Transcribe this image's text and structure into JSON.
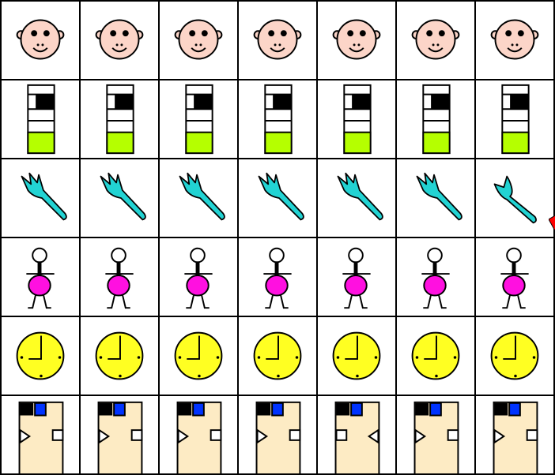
{
  "grid": [
    [
      "face",
      "face",
      "face",
      "face",
      "face",
      "face",
      "face"
    ],
    [
      "battery",
      "battery",
      "battery",
      "battery",
      "battery",
      "battery",
      "battery"
    ],
    [
      "fork",
      "fork",
      "fork",
      "fork",
      "fork",
      "fork",
      "fork-two-prong"
    ],
    [
      "person",
      "person",
      "person",
      "person",
      "person",
      "person",
      "person"
    ],
    [
      "clock",
      "clock",
      "clock",
      "clock",
      "clock",
      "clock",
      "clock"
    ],
    [
      "card",
      "card",
      "card",
      "card",
      "card-right-triangle",
      "card",
      "card"
    ]
  ],
  "colors": {
    "face": "#fcd5c8",
    "battery_fill": "#b5ff00",
    "fork": "#22d3d3",
    "person_body": "#ff10e0",
    "clock": "#ffff22",
    "card": "#fdebc4",
    "card_square": "#0033ff",
    "cursor": "#ff0000"
  }
}
